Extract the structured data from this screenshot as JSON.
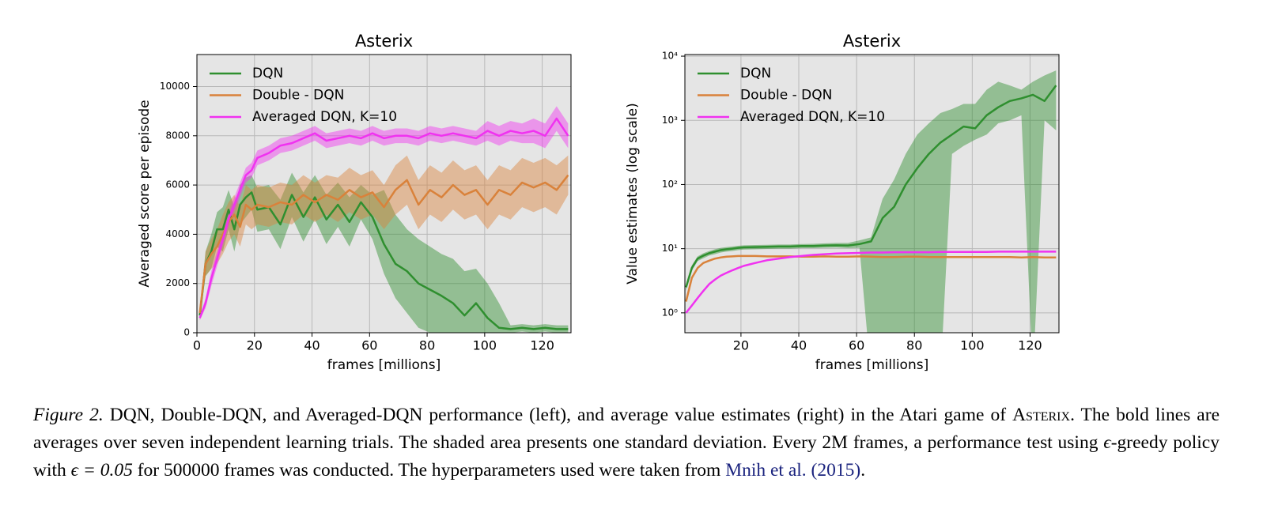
{
  "charts": [
    {
      "type": "line",
      "title": "Asterix",
      "xlabel": "frames [millions]",
      "ylabel": "Averaged score per episode",
      "xlim": [
        0,
        130
      ],
      "xticks": [
        0,
        20,
        40,
        60,
        80,
        100,
        120
      ],
      "ylim": [
        0,
        11300
      ],
      "yticks": [
        0,
        2000,
        4000,
        6000,
        8000,
        10000
      ],
      "yscale": "linear",
      "grid": true,
      "legend": "upper left",
      "x": [
        1,
        3,
        5,
        7,
        9,
        11,
        13,
        15,
        17,
        19,
        21,
        25,
        29,
        33,
        37,
        41,
        45,
        49,
        53,
        57,
        61,
        65,
        69,
        73,
        77,
        81,
        85,
        89,
        93,
        97,
        101,
        105,
        109,
        113,
        117,
        121,
        125,
        129
      ],
      "series": [
        {
          "name": "DQN",
          "color": "#2f8f2f",
          "values": [
            700,
            2800,
            3300,
            4200,
            4200,
            5000,
            4200,
            5200,
            5500,
            5700,
            5000,
            5100,
            4400,
            5600,
            4700,
            5500,
            4600,
            5200,
            4500,
            5300,
            4700,
            3600,
            2800,
            2500,
            2000,
            1750,
            1500,
            1200,
            700,
            1200,
            600,
            200,
            150,
            200,
            150,
            200,
            150,
            150
          ],
          "upper": [
            900,
            3300,
            4000,
            4900,
            5100,
            5800,
            5100,
            6000,
            6300,
            6400,
            5900,
            6000,
            5400,
            6500,
            5700,
            6400,
            5600,
            6100,
            5500,
            6000,
            5600,
            5800,
            4800,
            4200,
            3800,
            3500,
            3200,
            3000,
            2500,
            2600,
            2000,
            1200,
            300,
            350,
            300,
            350,
            300,
            300
          ],
          "lower": [
            500,
            2300,
            2600,
            3500,
            3300,
            4200,
            3300,
            4400,
            4700,
            5000,
            4100,
            4200,
            3400,
            4700,
            3700,
            4600,
            3600,
            4300,
            3500,
            4600,
            3800,
            2400,
            1400,
            800,
            200,
            0,
            0,
            0,
            0,
            0,
            0,
            0,
            0,
            50,
            0,
            50,
            0,
            0
          ]
        },
        {
          "name": "Double - DQN",
          "color": "#d9823b",
          "values": [
            800,
            2800,
            3200,
            3500,
            4000,
            4500,
            4800,
            4300,
            5200,
            5000,
            5200,
            5100,
            5300,
            5200,
            5600,
            5300,
            5600,
            5400,
            5800,
            5500,
            5700,
            5100,
            5800,
            6200,
            5200,
            5800,
            5500,
            6000,
            5600,
            5800,
            5200,
            5800,
            5600,
            6100,
            5900,
            6100,
            5800,
            6400
          ],
          "upper": [
            1000,
            3300,
            3800,
            4200,
            4800,
            5300,
            5600,
            5100,
            6000,
            5800,
            6000,
            5900,
            6100,
            6000,
            6400,
            6100,
            6400,
            6300,
            6700,
            6400,
            6600,
            6000,
            6800,
            7200,
            6200,
            6800,
            6500,
            7000,
            6600,
            6800,
            6200,
            6800,
            6600,
            7100,
            6900,
            7100,
            6800,
            7200
          ],
          "lower": [
            600,
            2300,
            2600,
            2800,
            3200,
            3700,
            4000,
            3500,
            4400,
            4200,
            4400,
            4300,
            4500,
            4400,
            4800,
            4500,
            4800,
            4500,
            4900,
            4600,
            4800,
            4200,
            4800,
            5200,
            4200,
            4800,
            4500,
            5000,
            4600,
            4800,
            4200,
            4800,
            4600,
            5100,
            4900,
            5100,
            4800,
            5600
          ]
        },
        {
          "name": "Averaged DQN, K=10",
          "color": "#f032f0",
          "values": [
            600,
            1200,
            2200,
            3000,
            3800,
            4600,
            5200,
            5800,
            6400,
            6600,
            7100,
            7300,
            7600,
            7700,
            7900,
            8100,
            7800,
            7900,
            8000,
            7900,
            8100,
            7900,
            8000,
            8000,
            7900,
            8100,
            8000,
            8100,
            8000,
            7900,
            8200,
            8000,
            8200,
            8100,
            8200,
            8000,
            8700,
            8000
          ],
          "upper": [
            700,
            1400,
            2500,
            3300,
            4100,
            4900,
            5500,
            6100,
            6700,
            6900,
            7400,
            7600,
            7900,
            8000,
            8200,
            8400,
            8100,
            8200,
            8300,
            8200,
            8400,
            8200,
            8300,
            8300,
            8200,
            8400,
            8300,
            8400,
            8300,
            8200,
            8600,
            8400,
            8600,
            8500,
            8700,
            8500,
            9200,
            8500
          ],
          "lower": [
            500,
            1000,
            1900,
            2700,
            3500,
            4300,
            4900,
            5500,
            6100,
            6300,
            6800,
            7000,
            7300,
            7400,
            7600,
            7800,
            7500,
            7600,
            7700,
            7600,
            7800,
            7600,
            7700,
            7700,
            7600,
            7800,
            7700,
            7800,
            7700,
            7600,
            7800,
            7600,
            7800,
            7700,
            7700,
            7500,
            8200,
            7500
          ]
        }
      ]
    },
    {
      "type": "line",
      "title": "Asterix",
      "xlabel": "frames [millions]",
      "ylabel": "Value estimates (log scale)",
      "xlim": [
        0.6,
        130
      ],
      "xticks": [
        20,
        40,
        60,
        80,
        100,
        120
      ],
      "ylim": [
        0.49,
        10600
      ],
      "yticks": [
        {
          "value": 1,
          "label": "10⁰"
        },
        {
          "value": 10,
          "label": "10¹"
        },
        {
          "value": 100,
          "label": "10²"
        },
        {
          "value": 1000,
          "label": "10³"
        },
        {
          "value": 10000,
          "label": "10⁴"
        }
      ],
      "yscale": "log",
      "grid": true,
      "legend": "upper left",
      "x": [
        1,
        3,
        5,
        7,
        9,
        11,
        13,
        15,
        17,
        19,
        21,
        25,
        29,
        33,
        37,
        41,
        45,
        49,
        53,
        57,
        61,
        65,
        69,
        73,
        77,
        81,
        85,
        89,
        93,
        97,
        101,
        105,
        109,
        113,
        117,
        121,
        125,
        129
      ],
      "series": [
        {
          "name": "DQN",
          "color": "#2f8f2f",
          "values": [
            2.5,
            5,
            7,
            7.8,
            8.5,
            9,
            9.5,
            9.8,
            10,
            10.3,
            10.5,
            10.6,
            10.7,
            10.8,
            10.8,
            11,
            11,
            11.2,
            11.3,
            11.2,
            11.8,
            13,
            30,
            45,
            100,
            180,
            300,
            450,
            600,
            800,
            750,
            1200,
            1600,
            2000,
            2200,
            2500,
            2000,
            3500
          ],
          "upper": [
            2.8,
            5.5,
            7.6,
            8.5,
            9.2,
            9.8,
            10.3,
            10.6,
            10.8,
            11.1,
            11.3,
            11.4,
            11.5,
            11.6,
            11.6,
            11.8,
            11.9,
            12.1,
            12.3,
            12.3,
            13.5,
            15,
            60,
            120,
            300,
            600,
            900,
            1300,
            1500,
            1800,
            1800,
            3000,
            4000,
            3500,
            3000,
            4000,
            5000,
            6000
          ],
          "lower": [
            2.2,
            4.5,
            6.4,
            7.1,
            7.8,
            8.2,
            8.7,
            9,
            9.2,
            9.5,
            9.7,
            9.8,
            9.9,
            10,
            10,
            10.2,
            10.2,
            10.3,
            10.4,
            10.2,
            10.3,
            0.1,
            0.1,
            0.1,
            0.1,
            0.1,
            0.1,
            0.1,
            300,
            400,
            500,
            600,
            900,
            1000,
            1200,
            0.1,
            1000,
            700
          ]
        },
        {
          "name": "Double - DQN",
          "color": "#d9823b",
          "values": [
            1.5,
            3.5,
            5,
            6,
            6.5,
            7,
            7.3,
            7.5,
            7.6,
            7.7,
            7.7,
            7.7,
            7.6,
            7.6,
            7.6,
            7.5,
            7.5,
            7.6,
            7.5,
            7.5,
            7.6,
            7.5,
            7.4,
            7.4,
            7.5,
            7.5,
            7.4,
            7.4,
            7.4,
            7.4,
            7.4,
            7.4,
            7.4,
            7.4,
            7.3,
            7.4,
            7.3,
            7.3
          ]
        },
        {
          "name": "Averaged DQN, K=10",
          "color": "#f032f0",
          "values": [
            1,
            1.3,
            1.7,
            2.2,
            2.8,
            3.3,
            3.8,
            4.2,
            4.6,
            5,
            5.4,
            6,
            6.6,
            7,
            7.4,
            7.7,
            8,
            8.2,
            8.4,
            8.5,
            8.6,
            8.7,
            8.7,
            8.8,
            8.8,
            8.8,
            8.8,
            8.9,
            8.9,
            8.9,
            8.9,
            8.9,
            9,
            9,
            9,
            9,
            9,
            9
          ]
        }
      ]
    }
  ],
  "caption": [
    "Figure 2.",
    " DQN, Double-DQN, and Averaged-DQN performance (left), and average value estimates (right) in the Atari game of ",
    "Asterix",
    ". The bold lines are averages over seven independent learning trials. The shaded area presents one standard deviation. Every 2M frames, a performance test using ",
    "ϵ",
    "-greedy policy with ",
    "ϵ = 0.05",
    " for 500000 frames was conducted. The hyperparameters used were taken from ",
    "Mnih et al. (2015)",
    "."
  ]
}
